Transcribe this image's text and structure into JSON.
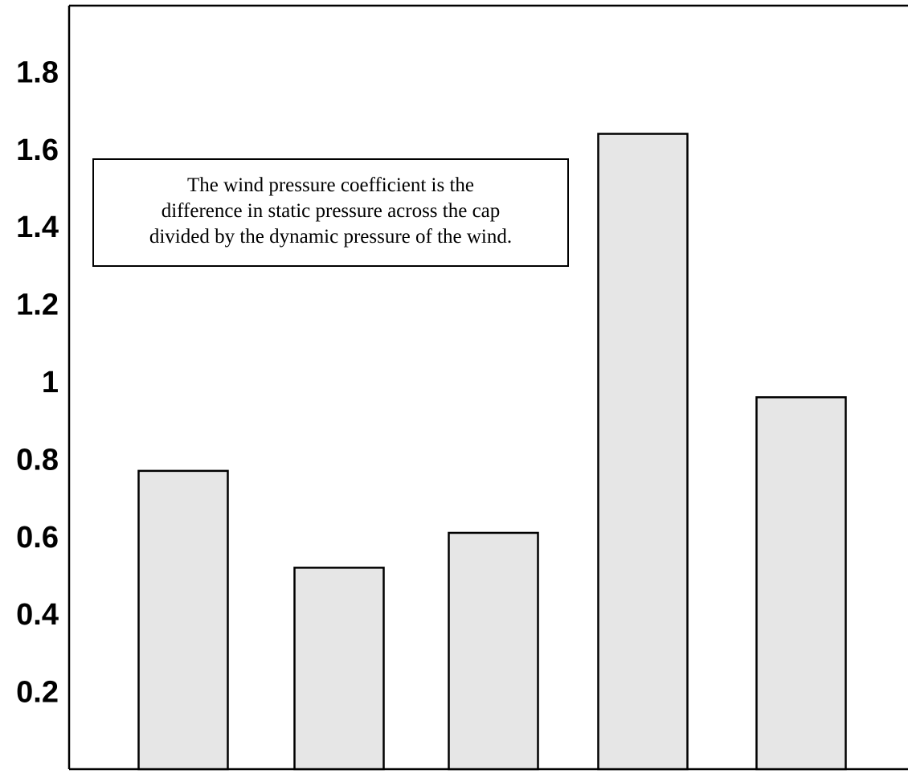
{
  "chart_data": {
    "type": "bar",
    "categories": [
      "",
      "",
      "",
      "",
      ""
    ],
    "values": [
      0.77,
      0.52,
      0.61,
      1.64,
      0.96
    ],
    "title": "",
    "xlabel": "",
    "ylabel": "",
    "ylim": [
      0,
      2.0
    ],
    "yticks": [
      0.2,
      0.4,
      0.6,
      0.8,
      1,
      1.2,
      1.4,
      1.6,
      1.8
    ],
    "ytick_labels": [
      "0.2",
      "0.4",
      "0.6",
      "0.8",
      "1",
      "1.2",
      "1.4",
      "1.6",
      "1.8"
    ],
    "grid": false,
    "legend": false,
    "annotation": {
      "lines": [
        "The wind pressure coefficient is the",
        "difference in static pressure across the cap",
        "divided by the dynamic pressure of the wind."
      ]
    },
    "colors": {
      "bar_fill": "#e6e6e6",
      "bar_stroke": "#000000",
      "axis": "#000000",
      "text": "#000000"
    }
  }
}
